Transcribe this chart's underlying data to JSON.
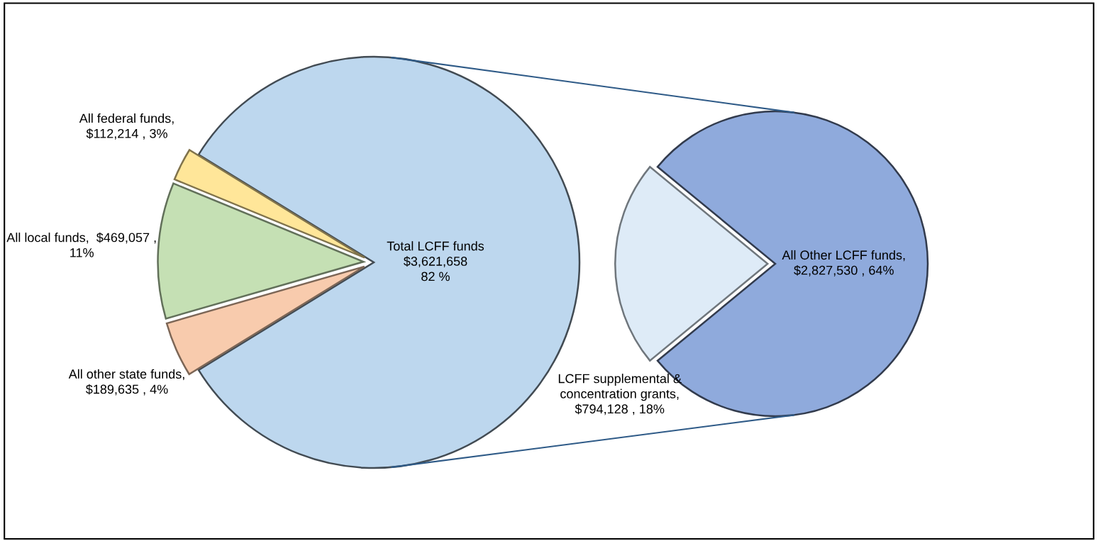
{
  "chart_data": [
    {
      "type": "pie",
      "categories": [
        "Total LCFF funds\n$3,621,658\n82 %",
        "All federal funds,\n$112,214 , 3%",
        "All local funds,  $469,057 ,\n11%",
        "All other state funds,\n$189,635 , 4%"
      ],
      "values": [
        3621658,
        112214,
        469057,
        189635
      ],
      "colors": [
        "#bdd7ee",
        "#ffe699",
        "#c5e0b4",
        "#f8cbad"
      ]
    },
    {
      "type": "pie",
      "categories": [
        "All Other LCFF funds,\n$2,827,530 , 64%",
        "LCFF supplemental &\nconcentration grants,\n$794,128 , 18%"
      ],
      "values": [
        2827530,
        794128
      ],
      "colors": [
        "#8faadc",
        "#deebf7"
      ]
    }
  ]
}
